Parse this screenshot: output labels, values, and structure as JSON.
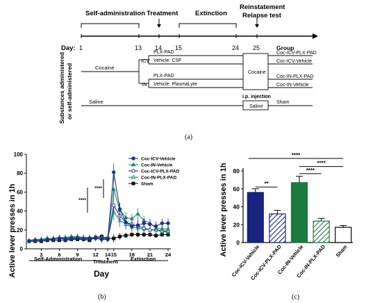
{
  "panel_labels": {
    "a": "(a)",
    "b": "(b)",
    "c": "(c)"
  },
  "schematic": {
    "phases": {
      "self_admin": "Self-administration",
      "treatment": "Treatment",
      "extinction": "Extinction",
      "reinstatement_1": "Reinstatement",
      "reinstatement_2": "Relapse test"
    },
    "day_label": "Day:",
    "day_ticks": [
      "1",
      "13",
      "14",
      "15",
      "24",
      "25"
    ],
    "side_label_1": "Substances administered",
    "side_label_2": "or self-administered",
    "cocaine": "Cocaine",
    "icv": "ICV",
    "in": "IN",
    "plx_pad_1": "PLX-PAD",
    "vehicle_csf": "Vehicle: CSF",
    "plx_pad_2": "PLX-PAD",
    "vehicle_plasmalyte": "Vehicle: PlasmaLyte",
    "saline": "Saline",
    "box_cocaine": "Cocaine",
    "ip_injection": "i.p. injection",
    "box_saline": "Saline",
    "group_header": "Group",
    "groups": [
      "Coc-ICV-PLX-PAD",
      "Coc-ICV-Vehicle",
      "Coc-IN-PLX-PAD",
      "Coc-IN-Vehicle",
      "Sham"
    ]
  },
  "chart_data": [
    {
      "type": "line",
      "ylabel": "Active lever presses in 1h",
      "xlabel": "Day",
      "xticks": [
        "3",
        "6",
        "9",
        "12",
        "14",
        "15",
        "18",
        "21",
        "24"
      ],
      "ylim": [
        0,
        100
      ],
      "yticks": [
        "0",
        "20",
        "40",
        "60",
        "80",
        "100"
      ],
      "phase_labels": {
        "self_admin": "Self-Administration",
        "treatment": "Treatment",
        "extinction": "Extinction"
      },
      "significance": [
        "****",
        "****"
      ],
      "legend_position": "top-right",
      "x": [
        1,
        2,
        3,
        4,
        5,
        6,
        7,
        8,
        9,
        10,
        11,
        12,
        13,
        14,
        15,
        16,
        17,
        18,
        19,
        20,
        21,
        22,
        23,
        24
      ],
      "series": [
        {
          "name": "Coc-ICV-Vehicle",
          "color": "#1f2f86",
          "marker": "circle-filled",
          "values": [
            8,
            9,
            9,
            10,
            10,
            11,
            10,
            11,
            11,
            10,
            11,
            11,
            10,
            10,
            81,
            42,
            28,
            24,
            25,
            27,
            26,
            24,
            27,
            27
          ]
        },
        {
          "name": "Coc-IN-Vehicle",
          "color": "#1f8a6a",
          "marker": "triangle-filled",
          "values": [
            9,
            9,
            10,
            11,
            11,
            12,
            12,
            13,
            13,
            12,
            12,
            12,
            11,
            11,
            63,
            41,
            33,
            32,
            37,
            30,
            27,
            22,
            21,
            21
          ]
        },
        {
          "name": "Coc-ICV-PLX-PAD",
          "color": "#1f2f86",
          "marker": "circle-open",
          "values": [
            8,
            9,
            9,
            10,
            10,
            11,
            11,
            11,
            12,
            11,
            11,
            12,
            11,
            10,
            46,
            35,
            28,
            26,
            24,
            22,
            20,
            20,
            19,
            19
          ]
        },
        {
          "name": "Coc-IN-PLX-PAD",
          "color": "#1f8a6a",
          "marker": "triangle-open",
          "values": [
            9,
            10,
            10,
            11,
            11,
            12,
            12,
            12,
            13,
            12,
            12,
            12,
            12,
            11,
            39,
            30,
            26,
            23,
            22,
            21,
            20,
            20,
            18,
            18
          ]
        },
        {
          "name": "Sham",
          "color": "#111111",
          "marker": "square-filled",
          "values": [
            8,
            8,
            8,
            9,
            9,
            9,
            9,
            10,
            10,
            10,
            9,
            12,
            13,
            11,
            11,
            13,
            14,
            15,
            15,
            15,
            15,
            14,
            15,
            15
          ]
        }
      ]
    },
    {
      "type": "bar",
      "ylabel": "Active lever presses in 1h",
      "ylim": [
        0,
        80
      ],
      "yticks": [
        "0",
        "20",
        "40",
        "60",
        "80"
      ],
      "categories": [
        "Coc-ICV-Vehicle",
        "Coc-ICV-PLX-PAD",
        "Coc-IN-Vehicle",
        "Coc-IN-PLX-PAD",
        "Sham"
      ],
      "values": [
        56,
        32,
        67,
        24,
        17
      ],
      "errors": [
        4,
        4,
        7,
        3,
        2
      ],
      "colors": [
        "#1a237e",
        "hatched-blue",
        "#1b7a3e",
        "hatched-green",
        "#ffffff"
      ],
      "significance": [
        {
          "from": "Coc-ICV-Vehicle",
          "to": "Coc-ICV-PLX-PAD",
          "label": "**"
        },
        {
          "from": "Coc-ICV-Vehicle",
          "to": "Sham",
          "label": "****"
        },
        {
          "from": "Coc-IN-Vehicle",
          "to": "Sham",
          "label": "****"
        },
        {
          "from": "Coc-IN-Vehicle",
          "to": "Coc-IN-PLX-PAD",
          "label": "****"
        }
      ]
    }
  ]
}
